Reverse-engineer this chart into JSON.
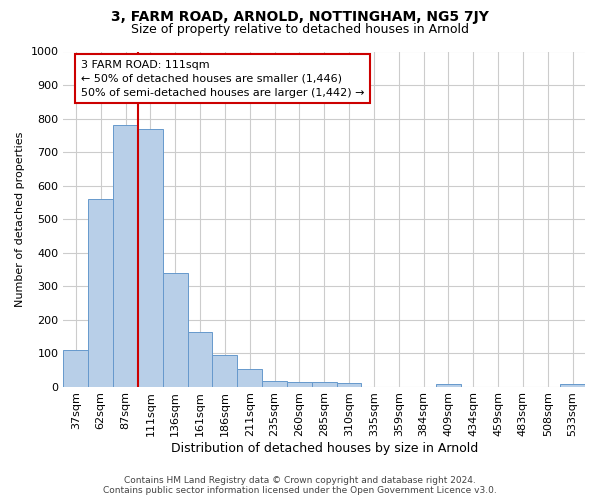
{
  "title": "3, FARM ROAD, ARNOLD, NOTTINGHAM, NG5 7JY",
  "subtitle": "Size of property relative to detached houses in Arnold",
  "xlabel": "Distribution of detached houses by size in Arnold",
  "ylabel": "Number of detached properties",
  "footer_line1": "Contains HM Land Registry data © Crown copyright and database right 2024.",
  "footer_line2": "Contains public sector information licensed under the Open Government Licence v3.0.",
  "categories": [
    "37sqm",
    "62sqm",
    "87sqm",
    "111sqm",
    "136sqm",
    "161sqm",
    "186sqm",
    "211sqm",
    "235sqm",
    "260sqm",
    "285sqm",
    "310sqm",
    "335sqm",
    "359sqm",
    "384sqm",
    "409sqm",
    "434sqm",
    "459sqm",
    "483sqm",
    "508sqm",
    "533sqm"
  ],
  "values": [
    110,
    560,
    780,
    770,
    340,
    163,
    95,
    52,
    18,
    14,
    13,
    10,
    0,
    0,
    0,
    8,
    0,
    0,
    0,
    0,
    9
  ],
  "bar_color": "#b8cfe8",
  "bar_edge_color": "#6699cc",
  "red_line_color": "#cc0000",
  "red_line_index": 3,
  "annotation_text": "3 FARM ROAD: 111sqm\n← 50% of detached houses are smaller (1,446)\n50% of semi-detached houses are larger (1,442) →",
  "annotation_box_facecolor": "#ffffff",
  "annotation_box_edgecolor": "#cc0000",
  "ylim": [
    0,
    1000
  ],
  "yticks": [
    0,
    100,
    200,
    300,
    400,
    500,
    600,
    700,
    800,
    900,
    1000
  ],
  "background_color": "#ffffff",
  "grid_color": "#cccccc",
  "title_fontsize": 10,
  "subtitle_fontsize": 9,
  "ylabel_fontsize": 8,
  "xlabel_fontsize": 9,
  "tick_fontsize": 8,
  "annotation_fontsize": 8,
  "footer_fontsize": 6.5
}
